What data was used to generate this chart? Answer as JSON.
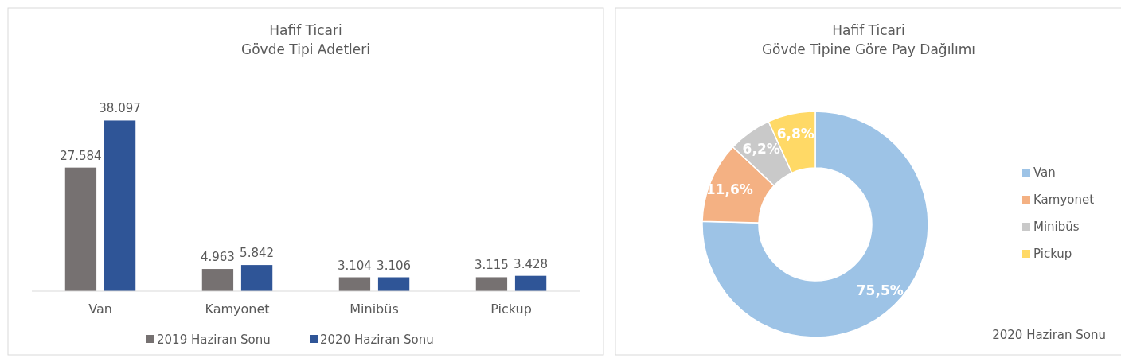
{
  "chart_data": [
    {
      "type": "bar",
      "title": "Hafif Ticari",
      "subtitle": "Gövde Tipi Adetleri",
      "categories": [
        "Van",
        "Kamyonet",
        "Minibüs",
        "Pickup"
      ],
      "legend": "bottom",
      "series": [
        {
          "name": "2019 Haziran Sonu",
          "color": "#767171",
          "values": [
            27584,
            4963,
            3104,
            3115
          ],
          "value_labels": [
            "27.584",
            "4.963",
            "3.104",
            "3.115"
          ]
        },
        {
          "name": "2020 Haziran Sonu",
          "color": "#2f5597",
          "values": [
            38097,
            5842,
            3106,
            3428
          ],
          "value_labels": [
            "38.097",
            "5.842",
            "3.106",
            "3.428"
          ]
        }
      ]
    },
    {
      "type": "donut",
      "title": "Hafif Ticari",
      "subtitle": "Gövde Tipine Göre Pay Dağılımı",
      "categories": [
        "Van",
        "Kamyonet",
        "Minibüs",
        "Pickup"
      ],
      "values": [
        75.5,
        11.6,
        6.2,
        6.8
      ],
      "value_labels": [
        "75,5%",
        "11,6%",
        "6,2%",
        "6,8%"
      ],
      "colors": [
        "#9dc3e6",
        "#f4b183",
        "#c9c9c9",
        "#ffd966"
      ],
      "legend": "right",
      "annotations": [
        "2020 Haziran Sonu"
      ]
    }
  ]
}
